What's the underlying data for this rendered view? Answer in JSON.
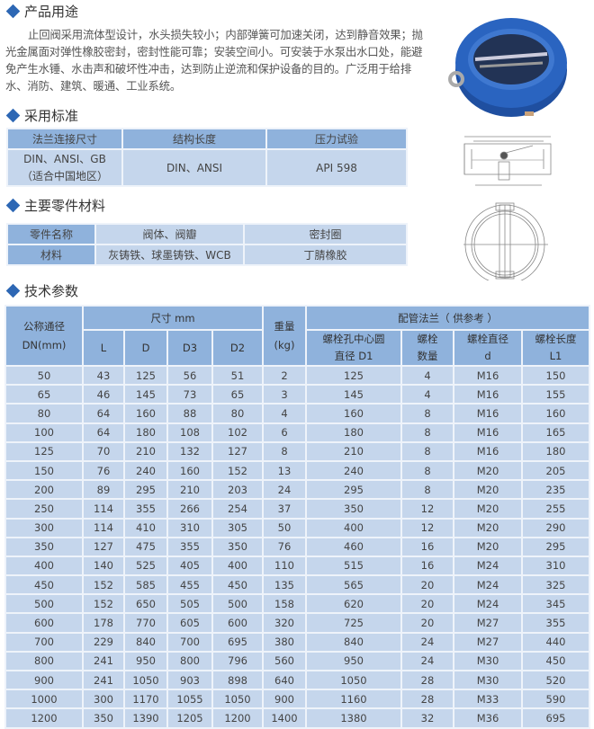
{
  "sections": {
    "usage": "产品用途",
    "standards": "采用标准",
    "materials": "主要零件材料",
    "tech": "技术参数"
  },
  "usage_text": "止回阀采用流体型设计，水头损失较小；内部弹簧可加速关闭，达到静音效果；抛光金属面对弹性橡胶密封，密封性能可靠；安装空间小。可安装于水泵出水口处，能避免产生水锤、水击声和破坏性冲击，达到防止逆流和保护设备的目的。广泛用于给排水、消防、建筑、暖通、工业系统。",
  "standards_table": {
    "headers": [
      "法兰连接尺寸",
      "结构长度",
      "压力试验"
    ],
    "row": [
      "DIN、ANSI、GB",
      "（适合中国地区）",
      "DIN、ANSI",
      "API 598"
    ]
  },
  "materials_table": {
    "rows": [
      [
        "零件名称",
        "阀体、阀瓣",
        "密封圈"
      ],
      [
        "材料",
        "灰铸铁、球墨铸铁、WCB",
        "丁腈橡胶"
      ]
    ]
  },
  "tech_table": {
    "headers": {
      "dn": "公称通径",
      "dn2": "DN(mm)",
      "size": "尺寸 mm",
      "L": "L",
      "D": "D",
      "D3": "D3",
      "D2": "D2",
      "weight": "重量",
      "weight2": "(kg)",
      "flange": "配管法兰（ 供参考 ）",
      "d1a": "螺栓孔中心圆",
      "d1b": "直径 D1",
      "cnta": "螺栓",
      "cntb": "数量",
      "bda": "螺栓直径",
      "bdb": "d",
      "bla": "螺栓长度",
      "blb": "L1"
    },
    "rows": [
      [
        "50",
        "43",
        "125",
        "56",
        "51",
        "2",
        "125",
        "4",
        "M16",
        "150"
      ],
      [
        "65",
        "46",
        "145",
        "73",
        "65",
        "3",
        "145",
        "4",
        "M16",
        "155"
      ],
      [
        "80",
        "64",
        "160",
        "88",
        "80",
        "4",
        "160",
        "8",
        "M16",
        "160"
      ],
      [
        "100",
        "64",
        "180",
        "108",
        "102",
        "6",
        "180",
        "8",
        "M16",
        "165"
      ],
      [
        "125",
        "70",
        "210",
        "132",
        "127",
        "8",
        "210",
        "8",
        "M16",
        "180"
      ],
      [
        "150",
        "76",
        "240",
        "160",
        "152",
        "13",
        "240",
        "8",
        "M20",
        "205"
      ],
      [
        "200",
        "89",
        "295",
        "210",
        "203",
        "24",
        "295",
        "8",
        "M20",
        "235"
      ],
      [
        "250",
        "114",
        "355",
        "266",
        "254",
        "37",
        "350",
        "12",
        "M20",
        "255"
      ],
      [
        "300",
        "114",
        "410",
        "310",
        "305",
        "50",
        "400",
        "12",
        "M20",
        "290"
      ],
      [
        "350",
        "127",
        "475",
        "355",
        "350",
        "76",
        "460",
        "16",
        "M20",
        "295"
      ],
      [
        "400",
        "140",
        "525",
        "405",
        "400",
        "110",
        "515",
        "16",
        "M24",
        "310"
      ],
      [
        "450",
        "152",
        "585",
        "455",
        "450",
        "135",
        "565",
        "20",
        "M24",
        "325"
      ],
      [
        "500",
        "152",
        "650",
        "505",
        "500",
        "158",
        "620",
        "20",
        "M24",
        "345"
      ],
      [
        "600",
        "178",
        "770",
        "605",
        "600",
        "320",
        "725",
        "20",
        "M27",
        "355"
      ],
      [
        "700",
        "229",
        "840",
        "700",
        "695",
        "380",
        "840",
        "24",
        "M27",
        "440"
      ],
      [
        "800",
        "241",
        "950",
        "800",
        "796",
        "560",
        "950",
        "24",
        "M30",
        "450"
      ],
      [
        "900",
        "241",
        "1050",
        "903",
        "898",
        "640",
        "1050",
        "28",
        "M30",
        "520"
      ],
      [
        "1000",
        "300",
        "1170",
        "1055",
        "1050",
        "900",
        "1160",
        "28",
        "M33",
        "590"
      ],
      [
        "1200",
        "350",
        "1390",
        "1205",
        "1200",
        "1400",
        "1380",
        "32",
        "M36",
        "695"
      ]
    ]
  },
  "colors": {
    "accent": "#2d67b4",
    "header_bg": "#8fb2dc",
    "cell_bg": "#c5d6ec",
    "valve_blue": "#2a64c0"
  }
}
